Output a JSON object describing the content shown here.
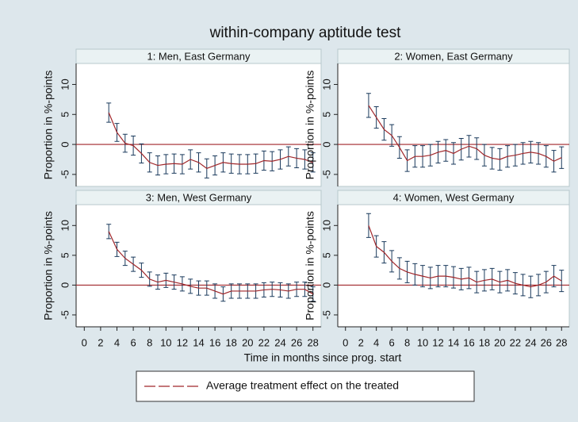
{
  "title": "within-company aptitude test",
  "xlabel": "Time in months since prog. start",
  "chart_data": [
    {
      "type": "line",
      "title": "1: Men, East Germany",
      "ylabel": "Proportion in %-points",
      "x": [
        3,
        4,
        5,
        6,
        7,
        8,
        9,
        10,
        11,
        12,
        13,
        14,
        15,
        16,
        17,
        18,
        19,
        20,
        21,
        22,
        23,
        24,
        25,
        26,
        27,
        28
      ],
      "series": [
        {
          "name": "Average treatment effect on the treated",
          "color": "#a0262a",
          "error_color": "#1a3a5c",
          "values": [
            5.3,
            2,
            0.2,
            -0.2,
            -1.5,
            -3,
            -3.5,
            -3.3,
            -3.2,
            -3.3,
            -2.5,
            -3,
            -4,
            -3.5,
            -3,
            -3.2,
            -3.3,
            -3.3,
            -3.2,
            -2.7,
            -2.8,
            -2.5,
            -2,
            -2.3,
            -2.5,
            -3
          ],
          "errors": [
            1.6,
            1.5,
            1.5,
            1.6,
            1.6,
            1.6,
            1.6,
            1.6,
            1.6,
            1.6,
            1.6,
            1.6,
            1.6,
            1.6,
            1.6,
            1.6,
            1.6,
            1.6,
            1.6,
            1.6,
            1.6,
            1.6,
            1.6,
            1.6,
            1.6,
            1.6
          ]
        }
      ],
      "xlim": [
        -1,
        29
      ],
      "ylim": [
        -7,
        13.5
      ],
      "xticks": [
        0,
        2,
        4,
        6,
        8,
        10,
        12,
        14,
        16,
        18,
        20,
        22,
        24,
        26,
        28
      ],
      "yticks": [
        -5,
        0,
        5,
        10
      ],
      "reference_line": 0,
      "reference_color": "#a0262a"
    },
    {
      "type": "line",
      "title": "2: Women, East Germany",
      "ylabel": "Proportion in %-points",
      "x": [
        3,
        4,
        5,
        6,
        7,
        8,
        9,
        10,
        11,
        12,
        13,
        14,
        15,
        16,
        17,
        18,
        19,
        20,
        21,
        22,
        23,
        24,
        25,
        26,
        27,
        28
      ],
      "series": [
        {
          "name": "Average treatment effect on the treated",
          "color": "#a0262a",
          "error_color": "#1a3a5c",
          "values": [
            6.5,
            4.5,
            2.5,
            1.5,
            -0.5,
            -2.7,
            -2,
            -2,
            -1.8,
            -1.3,
            -1,
            -1.5,
            -0.8,
            -0.3,
            -0.7,
            -1.8,
            -2.3,
            -2.5,
            -2,
            -1.8,
            -1.5,
            -1.3,
            -1.5,
            -2,
            -2.8,
            -2.2
          ],
          "errors": [
            2,
            1.8,
            1.8,
            1.8,
            1.8,
            1.8,
            1.8,
            1.8,
            1.8,
            1.8,
            1.8,
            1.8,
            1.8,
            1.8,
            1.8,
            1.8,
            1.8,
            1.8,
            1.8,
            1.8,
            1.8,
            1.8,
            1.8,
            1.8,
            1.8,
            1.8
          ]
        }
      ],
      "xlim": [
        -1,
        29
      ],
      "ylim": [
        -7,
        13.5
      ],
      "xticks": [
        0,
        2,
        4,
        6,
        8,
        10,
        12,
        14,
        16,
        18,
        20,
        22,
        24,
        26,
        28
      ],
      "yticks": [
        -5,
        0,
        5,
        10
      ],
      "reference_line": 0,
      "reference_color": "#a0262a"
    },
    {
      "type": "line",
      "title": "3: Men, West Germany",
      "ylabel": "Proportion in %-points",
      "x": [
        3,
        4,
        5,
        6,
        7,
        8,
        9,
        10,
        11,
        12,
        13,
        14,
        15,
        16,
        17,
        18,
        19,
        20,
        21,
        22,
        23,
        24,
        25,
        26,
        27,
        28
      ],
      "series": [
        {
          "name": "Average treatment effect on the treated",
          "color": "#a0262a",
          "error_color": "#1a3a5c",
          "values": [
            9,
            6,
            4.5,
            3.5,
            2.5,
            1,
            0.5,
            0.8,
            0.5,
            0.2,
            -0.2,
            -0.5,
            -0.5,
            -1,
            -1.5,
            -1,
            -1,
            -1,
            -1,
            -0.8,
            -0.7,
            -0.8,
            -1,
            -0.7,
            -0.7,
            -1.5
          ],
          "errors": [
            1.2,
            1.2,
            1.2,
            1.2,
            1.2,
            1.2,
            1.2,
            1.2,
            1.2,
            1.2,
            1.2,
            1.2,
            1.2,
            1.2,
            1.2,
            1.2,
            1.2,
            1.2,
            1.2,
            1.2,
            1.2,
            1.2,
            1.2,
            1.2,
            1.2,
            1.2
          ]
        }
      ],
      "xlim": [
        -1,
        29
      ],
      "ylim": [
        -7,
        13.5
      ],
      "xticks": [
        0,
        2,
        4,
        6,
        8,
        10,
        12,
        14,
        16,
        18,
        20,
        22,
        24,
        26,
        28
      ],
      "yticks": [
        -5,
        0,
        5,
        10
      ],
      "reference_line": 0,
      "reference_color": "#a0262a"
    },
    {
      "type": "line",
      "title": "4: Women, West Germany",
      "ylabel": "Proportion in %-points",
      "x": [
        3,
        4,
        5,
        6,
        7,
        8,
        9,
        10,
        11,
        12,
        13,
        14,
        15,
        16,
        17,
        18,
        19,
        20,
        21,
        22,
        23,
        24,
        25,
        26,
        27,
        28
      ],
      "series": [
        {
          "name": "Average treatment effect on the treated",
          "color": "#a0262a",
          "error_color": "#1a3a5c",
          "values": [
            10,
            6.5,
            5.5,
            4,
            2.8,
            2.2,
            1.8,
            1.5,
            1.2,
            1.5,
            1.5,
            1.3,
            1,
            1.2,
            0.5,
            0.8,
            1,
            0.5,
            0.8,
            0.3,
            0,
            -0.3,
            0,
            0.5,
            1.5,
            0.7
          ],
          "errors": [
            2,
            1.8,
            1.8,
            1.8,
            1.8,
            1.8,
            1.8,
            1.8,
            1.8,
            1.8,
            1.8,
            1.8,
            1.8,
            1.8,
            1.8,
            1.8,
            1.8,
            1.8,
            1.8,
            1.8,
            1.8,
            1.8,
            1.8,
            1.8,
            1.8,
            1.8
          ]
        }
      ],
      "xlim": [
        -1,
        29
      ],
      "ylim": [
        -7,
        13.5
      ],
      "xticks": [
        0,
        2,
        4,
        6,
        8,
        10,
        12,
        14,
        16,
        18,
        20,
        22,
        24,
        26,
        28
      ],
      "yticks": [
        -5,
        0,
        5,
        10
      ],
      "reference_line": 0,
      "reference_color": "#a0262a"
    }
  ]
}
